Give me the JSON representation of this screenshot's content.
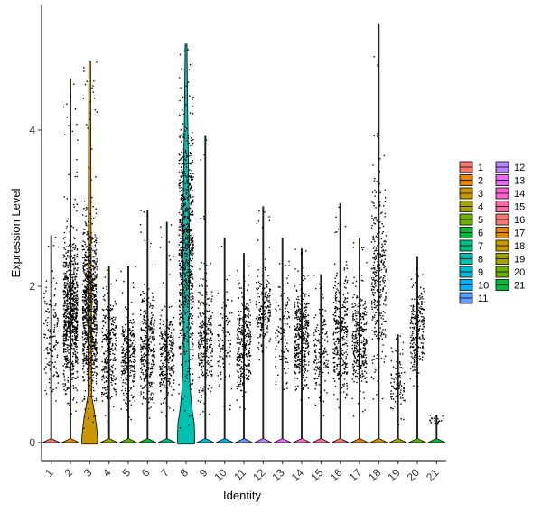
{
  "chart_data": {
    "type": "violin",
    "title": "",
    "xlabel": "Identity",
    "ylabel": "Expression Level",
    "ylim": [
      -0.3,
      5.6
    ],
    "yticks": [
      0,
      2,
      4
    ],
    "grid": false,
    "legend_position": "right",
    "categories": [
      "1",
      "2",
      "3",
      "4",
      "5",
      "6",
      "7",
      "8",
      "9",
      "10",
      "11",
      "12",
      "13",
      "14",
      "15",
      "16",
      "17",
      "18",
      "19",
      "20",
      "21"
    ],
    "colors": [
      "#F8766D",
      "#E58700",
      "#C99800",
      "#A3A500",
      "#6BB100",
      "#00BA38",
      "#00BF7D",
      "#00C0AF",
      "#00BCD8",
      "#00B0F6",
      "#619CFF",
      "#B983FF",
      "#E76BF3",
      "#FD61D1",
      "#FF67A4",
      "#F8766D",
      "#E58700",
      "#C99800",
      "#A3A500",
      "#6BB100",
      "#00BA38"
    ],
    "series": [
      {
        "name": "1",
        "max": 2.65,
        "band_min": 0.3,
        "band_max": 2.3,
        "density": 0.15
      },
      {
        "name": "2",
        "max": 4.65,
        "band_min": 0.3,
        "band_max": 3.0,
        "density": 0.9
      },
      {
        "name": "3",
        "max": 4.88,
        "band_min": 0.1,
        "band_max": 3.4,
        "density": 1.0
      },
      {
        "name": "4",
        "max": 2.25,
        "band_min": 0.2,
        "band_max": 2.2,
        "density": 0.3
      },
      {
        "name": "5",
        "max": 2.25,
        "band_min": 0.2,
        "band_max": 2.0,
        "density": 0.3
      },
      {
        "name": "6",
        "max": 2.98,
        "band_min": 0.2,
        "band_max": 2.2,
        "density": 0.35
      },
      {
        "name": "7",
        "max": 2.82,
        "band_min": 0.2,
        "band_max": 2.0,
        "density": 0.3
      },
      {
        "name": "8",
        "max": 5.1,
        "band_min": 0.1,
        "band_max": 5.0,
        "density": 0.8
      },
      {
        "name": "9",
        "max": 3.92,
        "band_min": 0.2,
        "band_max": 2.5,
        "density": 0.3
      },
      {
        "name": "10",
        "max": 2.62,
        "band_min": 0.3,
        "band_max": 2.4,
        "density": 0.1
      },
      {
        "name": "11",
        "max": 2.42,
        "band_min": 0.3,
        "band_max": 2.2,
        "density": 0.3
      },
      {
        "name": "12",
        "max": 3.02,
        "band_min": 1.0,
        "band_max": 2.4,
        "density": 0.2
      },
      {
        "name": "13",
        "max": 2.62,
        "band_min": 0.3,
        "band_max": 2.4,
        "density": 0.1
      },
      {
        "name": "14",
        "max": 2.48,
        "band_min": 0.4,
        "band_max": 2.3,
        "density": 0.4
      },
      {
        "name": "15",
        "max": 2.15,
        "band_min": 0.3,
        "band_max": 2.0,
        "density": 0.15
      },
      {
        "name": "16",
        "max": 3.06,
        "band_min": 0.3,
        "band_max": 2.6,
        "density": 0.35
      },
      {
        "name": "17",
        "max": 2.62,
        "band_min": 0.3,
        "band_max": 2.3,
        "density": 0.35
      },
      {
        "name": "18",
        "max": 5.35,
        "band_min": 0.3,
        "band_max": 4.0,
        "density": 0.35
      },
      {
        "name": "19",
        "max": 1.38,
        "band_min": 0.2,
        "band_max": 1.3,
        "density": 0.1
      },
      {
        "name": "20",
        "max": 2.38,
        "band_min": 0.6,
        "band_max": 2.3,
        "density": 0.25
      },
      {
        "name": "21",
        "max": 0.35,
        "band_min": 0.2,
        "band_max": 0.35,
        "density": 0.02
      }
    ]
  }
}
